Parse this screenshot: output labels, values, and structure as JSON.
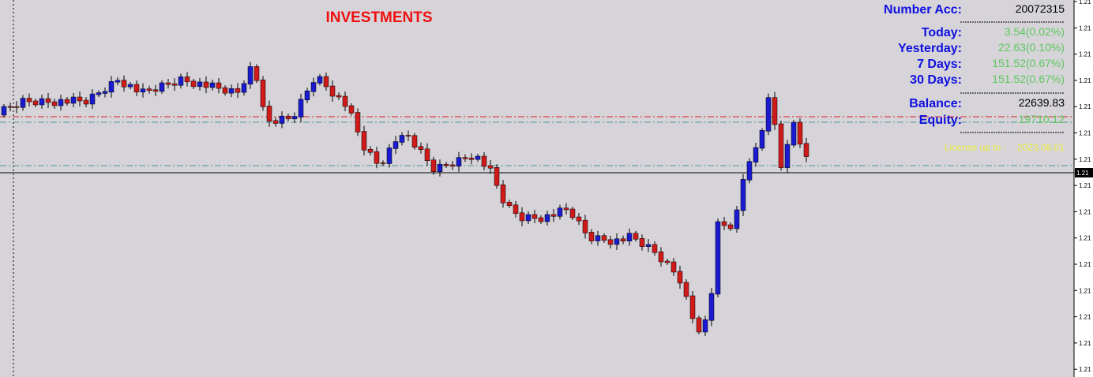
{
  "title": "INVESTMENTS",
  "panel": {
    "rows": [
      {
        "label": "Number Acc:",
        "value": "20072315"
      },
      {
        "label": "Today:",
        "value": "3.54(0.02%)"
      },
      {
        "label": "Yesterday:",
        "value": "22.63(0.10%)"
      },
      {
        "label": "7 Days:",
        "value": "151.52(0.67%)"
      },
      {
        "label": "30 Days:",
        "value": "151.52(0.67%)"
      },
      {
        "label": "Balance:",
        "value": "22639.83"
      },
      {
        "label": "Equity:",
        "value": "19710.12"
      }
    ],
    "license_label": "License up to :",
    "license_date": "2023.08.01"
  },
  "price_scale": [
    "1.21",
    "1.21",
    "1.21",
    "1.21",
    "1.21",
    "1.21",
    "1.21",
    "1.21",
    "1.21",
    "1.21",
    "1.21",
    "1.21",
    "1.21",
    "1.21",
    "1.21"
  ],
  "current_price": "1.21"
}
